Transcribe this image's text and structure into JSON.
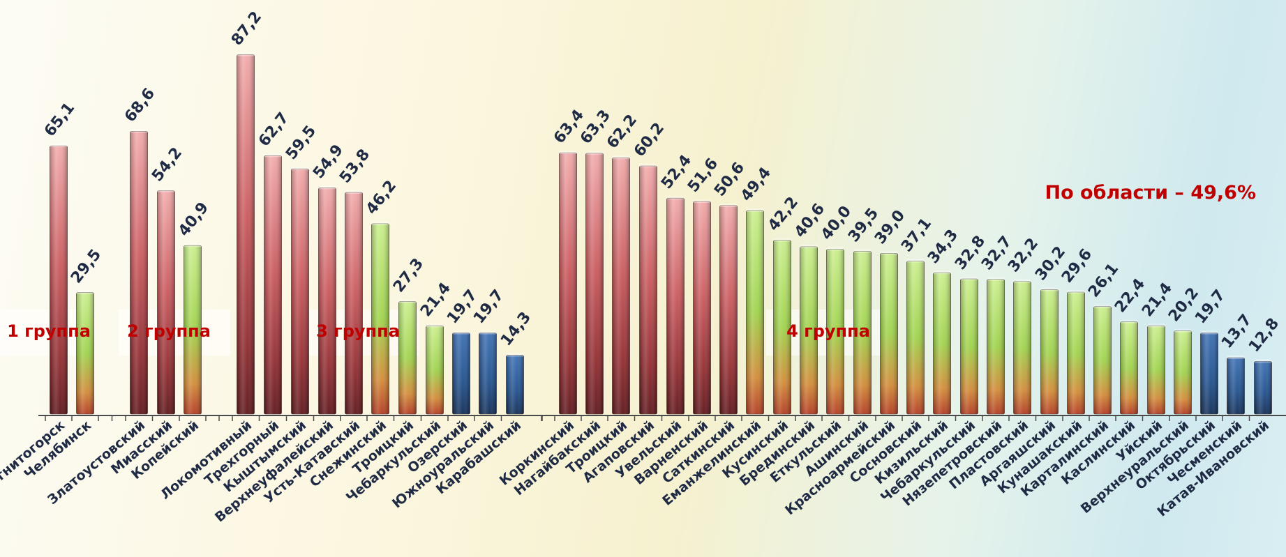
{
  "chart_data": {
    "type": "bar",
    "annotation": "По области – 49,6%",
    "groups": [
      "1 группа",
      "2 группа",
      "3 группа",
      "4 группа"
    ],
    "ylim": [
      0,
      100
    ],
    "colors": {
      "red": "#c9585c",
      "green": "#9ed24a",
      "blue": "#1f4f8c",
      "annotation": "#c00000",
      "text": "#1f2a44"
    },
    "bars": [
      {
        "name": "Магнитогорск",
        "value": 65.1,
        "label": "65,1",
        "color": "red",
        "group": 0
      },
      {
        "name": "Челябинск",
        "value": 29.5,
        "label": "29,5",
        "color": "green",
        "group": 0
      },
      {
        "name": "Златоустовский",
        "value": 68.6,
        "label": "68,6",
        "color": "red",
        "group": 1
      },
      {
        "name": "Миасский",
        "value": 54.2,
        "label": "54,2",
        "color": "red",
        "group": 1
      },
      {
        "name": "Копейский",
        "value": 40.9,
        "label": "40,9",
        "color": "green",
        "group": 1
      },
      {
        "name": "Локомотивный",
        "value": 87.2,
        "label": "87,2",
        "color": "red",
        "group": 2
      },
      {
        "name": "Трехгорный",
        "value": 62.7,
        "label": "62,7",
        "color": "red",
        "group": 2
      },
      {
        "name": "Кыштымский",
        "value": 59.5,
        "label": "59,5",
        "color": "red",
        "group": 2
      },
      {
        "name": "Верхнеуфалейский",
        "value": 54.9,
        "label": "54,9",
        "color": "red",
        "group": 2
      },
      {
        "name": "Усть-Катавский",
        "value": 53.8,
        "label": "53,8",
        "color": "red",
        "group": 2
      },
      {
        "name": "Снежинский",
        "value": 46.2,
        "label": "46,2",
        "color": "green",
        "group": 2
      },
      {
        "name": "Троицкий",
        "value": 27.3,
        "label": "27,3",
        "color": "green",
        "group": 2
      },
      {
        "name": "Чебаркульский",
        "value": 21.4,
        "label": "21,4",
        "color": "green",
        "group": 2
      },
      {
        "name": "Озерский",
        "value": 19.7,
        "label": "19,7",
        "color": "blue",
        "group": 2
      },
      {
        "name": "Южноуральский",
        "value": 19.7,
        "label": "19,7",
        "color": "blue",
        "group": 2
      },
      {
        "name": "Карабашский",
        "value": 14.3,
        "label": "14,3",
        "color": "blue",
        "group": 2
      },
      {
        "name": "Коркинский",
        "value": 63.4,
        "label": "63,4",
        "color": "red",
        "group": 3
      },
      {
        "name": "Нагайбакский",
        "value": 63.3,
        "label": "63,3",
        "color": "red",
        "group": 3
      },
      {
        "name": "Троицкий",
        "value": 62.2,
        "label": "62,2",
        "color": "red",
        "group": 3
      },
      {
        "name": "Агаповский",
        "value": 60.2,
        "label": "60,2",
        "color": "red",
        "group": 3
      },
      {
        "name": "Увельский",
        "value": 52.4,
        "label": "52,4",
        "color": "red",
        "group": 3
      },
      {
        "name": "Варненский",
        "value": 51.6,
        "label": "51,6",
        "color": "red",
        "group": 3
      },
      {
        "name": "Саткинский",
        "value": 50.6,
        "label": "50,6",
        "color": "red",
        "group": 3
      },
      {
        "name": "Еманжелинский",
        "value": 49.4,
        "label": "49,4",
        "color": "green",
        "group": 3
      },
      {
        "name": "Кусинский",
        "value": 42.2,
        "label": "42,2",
        "color": "green",
        "group": 3
      },
      {
        "name": "Брединский",
        "value": 40.6,
        "label": "40,6",
        "color": "green",
        "group": 3
      },
      {
        "name": "Еткульский",
        "value": 40.0,
        "label": "40,0",
        "color": "green",
        "group": 3
      },
      {
        "name": "Ашинский",
        "value": 39.5,
        "label": "39,5",
        "color": "green",
        "group": 3
      },
      {
        "name": "Красноармейский",
        "value": 39.0,
        "label": "39,0",
        "color": "green",
        "group": 3
      },
      {
        "name": "Сосновский",
        "value": 37.1,
        "label": "37,1",
        "color": "green",
        "group": 3
      },
      {
        "name": "Кизильский",
        "value": 34.3,
        "label": "34,3",
        "color": "green",
        "group": 3
      },
      {
        "name": "Чебаркульский",
        "value": 32.8,
        "label": "32,8",
        "color": "green",
        "group": 3
      },
      {
        "name": "Нязепетровский",
        "value": 32.7,
        "label": "32,7",
        "color": "green",
        "group": 3
      },
      {
        "name": "Пластовский",
        "value": 32.2,
        "label": "32,2",
        "color": "green",
        "group": 3
      },
      {
        "name": "Аргаяшский",
        "value": 30.2,
        "label": "30,2",
        "color": "green",
        "group": 3
      },
      {
        "name": "Кунашакский",
        "value": 29.6,
        "label": "29,6",
        "color": "green",
        "group": 3
      },
      {
        "name": "Карталинский",
        "value": 26.1,
        "label": "26,1",
        "color": "green",
        "group": 3
      },
      {
        "name": "Каслинский",
        "value": 22.4,
        "label": "22,4",
        "color": "green",
        "group": 3
      },
      {
        "name": "Уйский",
        "value": 21.4,
        "label": "21,4",
        "color": "green",
        "group": 3
      },
      {
        "name": "Верхнеуральский",
        "value": 20.2,
        "label": "20,2",
        "color": "green",
        "group": 3
      },
      {
        "name": "Октябрьский",
        "value": 19.7,
        "label": "19,7",
        "color": "blue",
        "group": 3
      },
      {
        "name": "Чесменский",
        "value": 13.7,
        "label": "13,7",
        "color": "blue",
        "group": 3
      },
      {
        "name": "Катав-Ивановский",
        "value": 12.8,
        "label": "12,8",
        "color": "blue",
        "group": 3
      }
    ]
  }
}
